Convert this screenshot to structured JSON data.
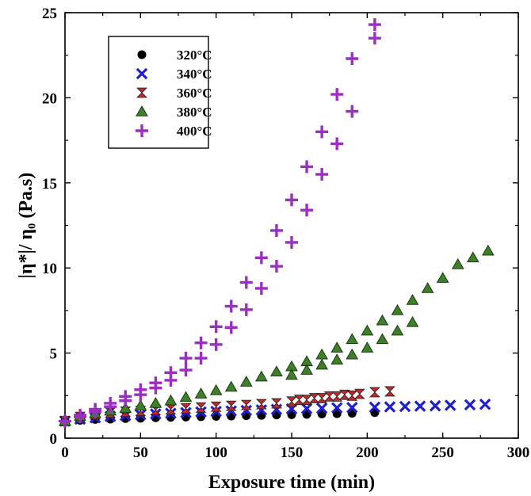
{
  "chart_data": {
    "type": "scatter",
    "xlabel": "Exposure time (min)",
    "ylabel": "|η*|/ η₀ (Pa.s)",
    "xlim": [
      0,
      300
    ],
    "ylim": [
      0,
      25
    ],
    "xticks": [
      0,
      50,
      100,
      150,
      200,
      250,
      300
    ],
    "yticks": [
      0,
      5,
      10,
      15,
      20,
      25
    ],
    "grid": false,
    "legend_position": "top-left",
    "series": [
      {
        "name": "320°C",
        "marker": "circle",
        "color": "#000000",
        "x": [
          0,
          10,
          10,
          20,
          20,
          30,
          30,
          40,
          40,
          50,
          50,
          60,
          60,
          70,
          70,
          80,
          80,
          90,
          90,
          100,
          100,
          110,
          110,
          120,
          120,
          130,
          130,
          140,
          140,
          150,
          150,
          160,
          160,
          170,
          170,
          180,
          180,
          190,
          190,
          205
        ],
        "y": [
          1.0,
          1.05,
          1.1,
          1.1,
          1.15,
          1.12,
          1.18,
          1.15,
          1.2,
          1.17,
          1.22,
          1.2,
          1.25,
          1.22,
          1.27,
          1.24,
          1.3,
          1.26,
          1.32,
          1.28,
          1.34,
          1.3,
          1.36,
          1.32,
          1.38,
          1.34,
          1.4,
          1.36,
          1.42,
          1.38,
          1.44,
          1.4,
          1.46,
          1.42,
          1.48,
          1.44,
          1.5,
          1.46,
          1.52,
          1.5
        ]
      },
      {
        "name": "340°C",
        "marker": "x",
        "color": "#1f1fcc",
        "x": [
          0,
          10,
          20,
          30,
          40,
          50,
          60,
          70,
          80,
          90,
          100,
          110,
          120,
          130,
          140,
          150,
          160,
          170,
          180,
          190,
          205,
          215,
          225,
          235,
          245,
          255,
          268,
          278
        ],
        "y": [
          1.0,
          1.12,
          1.2,
          1.28,
          1.33,
          1.38,
          1.42,
          1.46,
          1.5,
          1.54,
          1.57,
          1.6,
          1.63,
          1.66,
          1.69,
          1.72,
          1.74,
          1.76,
          1.78,
          1.8,
          1.82,
          1.84,
          1.86,
          1.88,
          1.9,
          1.93,
          1.96,
          1.99
        ]
      },
      {
        "name": "360°C",
        "marker": "hourglass",
        "color": "#c0282c",
        "x": [
          0,
          10,
          20,
          30,
          40,
          50,
          60,
          70,
          80,
          90,
          100,
          110,
          120,
          130,
          140,
          150,
          155,
          160,
          165,
          170,
          175,
          180,
          185,
          190,
          195,
          205,
          215
        ],
        "y": [
          1.0,
          1.25,
          1.4,
          1.5,
          1.55,
          1.6,
          1.65,
          1.7,
          1.75,
          1.8,
          1.85,
          1.9,
          1.95,
          2.0,
          2.05,
          2.15,
          2.25,
          2.25,
          2.35,
          2.35,
          2.45,
          2.45,
          2.55,
          2.5,
          2.6,
          2.7,
          2.75
        ]
      },
      {
        "name": "380°C",
        "marker": "triangle",
        "color": "#3f7f2a",
        "x": [
          0,
          10,
          20,
          30,
          40,
          50,
          60,
          70,
          80,
          90,
          100,
          110,
          120,
          130,
          140,
          150,
          160,
          170,
          180,
          190,
          200,
          210,
          220,
          230,
          240,
          250,
          260,
          270,
          280,
          150,
          160,
          170,
          180,
          190,
          200,
          210,
          220,
          230
        ],
        "y": [
          1.0,
          1.3,
          1.45,
          1.6,
          1.75,
          1.9,
          2.05,
          2.2,
          2.4,
          2.6,
          2.8,
          3.0,
          3.3,
          3.6,
          3.9,
          4.2,
          4.5,
          4.9,
          5.3,
          5.8,
          6.3,
          6.9,
          7.5,
          8.1,
          8.8,
          9.4,
          10.2,
          10.6,
          11.0,
          3.7,
          4.0,
          4.3,
          4.6,
          4.9,
          5.3,
          5.8,
          6.3,
          6.8
        ]
      },
      {
        "name": "400°C",
        "marker": "plus",
        "color": "#9b2fbf",
        "x": [
          0,
          10,
          10,
          20,
          20,
          30,
          30,
          40,
          40,
          50,
          50,
          60,
          60,
          70,
          70,
          80,
          80,
          90,
          90,
          100,
          100,
          110,
          110,
          120,
          120,
          130,
          130,
          140,
          140,
          150,
          150,
          160,
          160,
          170,
          170,
          180,
          180,
          190,
          190,
          205,
          205
        ],
        "y": [
          1.0,
          1.25,
          1.35,
          1.55,
          1.7,
          1.85,
          2.05,
          2.2,
          2.45,
          2.55,
          2.85,
          2.95,
          3.25,
          3.4,
          3.85,
          4.0,
          4.7,
          4.7,
          5.6,
          5.5,
          6.55,
          6.5,
          7.75,
          7.55,
          9.15,
          8.8,
          10.6,
          10.1,
          12.2,
          11.5,
          14.0,
          13.4,
          15.95,
          15.5,
          18.0,
          17.3,
          20.2,
          19.2,
          22.3,
          23.5,
          24.3
        ]
      }
    ]
  }
}
